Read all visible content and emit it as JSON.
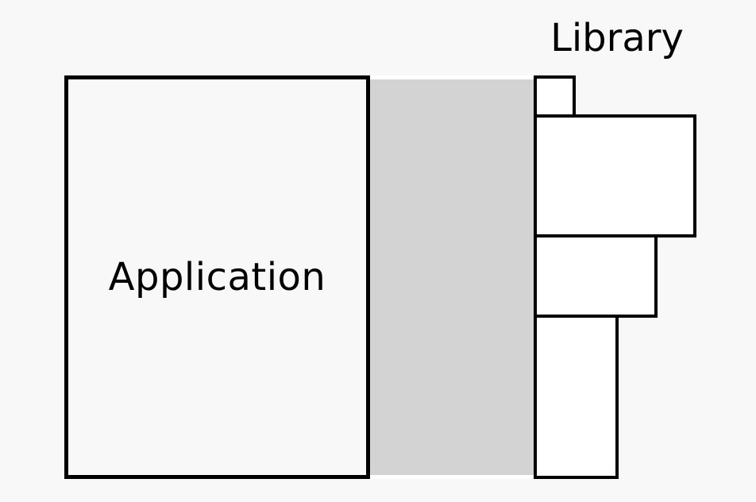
{
  "diagram": {
    "application": {
      "label": "Application"
    },
    "library": {
      "label": "Library",
      "module_count": 4
    },
    "colors": {
      "background": "#f8f8f8",
      "outline": "#000000",
      "box_fill": "#ffffff",
      "interface_fill": "#d3d3d3"
    }
  }
}
